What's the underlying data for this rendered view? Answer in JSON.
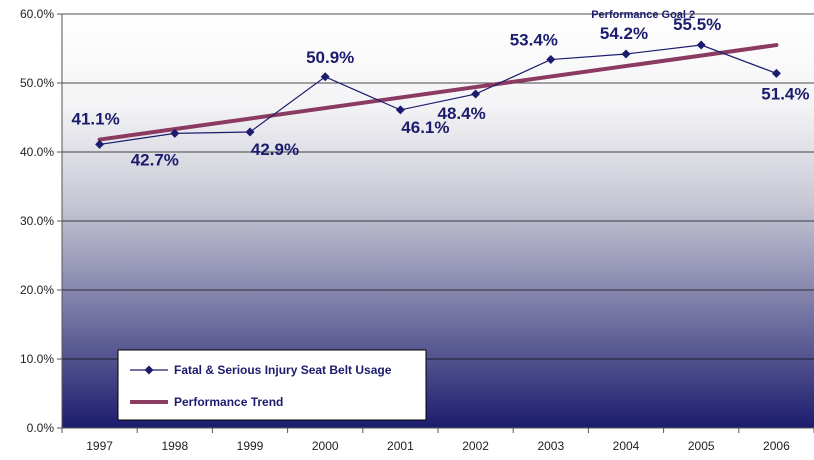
{
  "chart_data": {
    "type": "line",
    "x": [
      "1997",
      "1998",
      "1999",
      "2000",
      "2001",
      "2002",
      "2003",
      "2004",
      "2005",
      "2006"
    ],
    "series": [
      {
        "name": "Fatal & Serious Injury Seat Belt Usage",
        "values": [
          41.1,
          42.7,
          42.9,
          50.9,
          46.1,
          48.4,
          53.4,
          54.2,
          55.5,
          51.4
        ],
        "labels": [
          "41.1%",
          "42.7%",
          "42.9%",
          "50.9%",
          "46.1%",
          "48.4%",
          "53.4%",
          "54.2%",
          "55.5%",
          "51.4%"
        ],
        "color": "#1c1c6e",
        "marker": "diamond"
      },
      {
        "name": "Performance Trend",
        "start": {
          "x": "1997",
          "y": 41.8
        },
        "end": {
          "x": "2006",
          "y": 55.5
        },
        "color": "#8b3a62"
      }
    ],
    "annotation": {
      "text": "Performance Goal 2",
      "x": "2005",
      "y": 60.0
    },
    "ylim": [
      0,
      60
    ],
    "y_ticks": [
      "0.0%",
      "10.0%",
      "20.0%",
      "30.0%",
      "40.0%",
      "50.0%",
      "60.0%"
    ],
    "y_grid": true,
    "legend": "bottom-left",
    "background_gradient": [
      "#ffffff",
      "#1c1c6e"
    ]
  }
}
